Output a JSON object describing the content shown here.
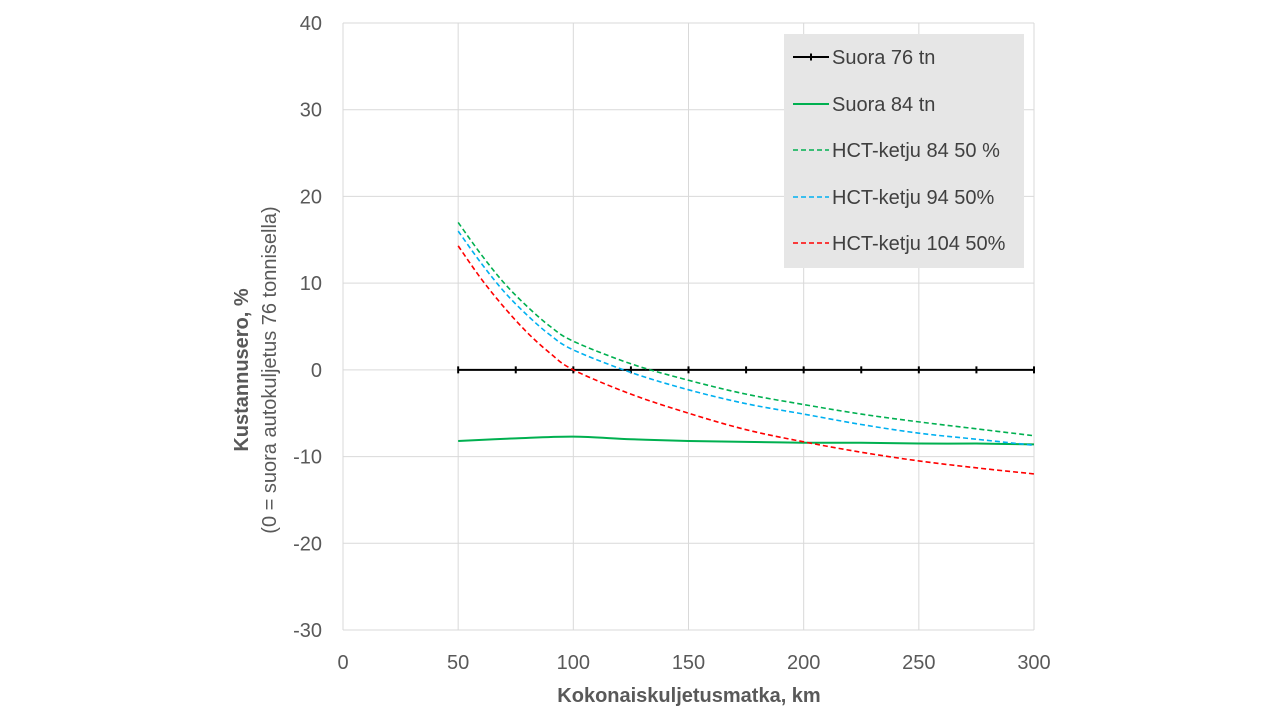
{
  "chart_data": {
    "type": "line",
    "xlabel": "Kokonaiskuljetusmatka, km",
    "ylabel": "Kustannusero, %",
    "ylabel_sub": "(0 = suora autokuljetus 76 tonnisella)",
    "xlim": [
      0,
      300
    ],
    "ylim": [
      -30,
      40
    ],
    "x_ticks": [
      0,
      50,
      100,
      150,
      200,
      250,
      300
    ],
    "y_ticks": [
      -30,
      -20,
      -10,
      0,
      10,
      20,
      30,
      40
    ],
    "grid": true,
    "legend_position": "top-right",
    "series": [
      {
        "name": "Suora 76 tn",
        "color": "#000000",
        "dash": "solid",
        "markers": true,
        "x": [
          50,
          75,
          100,
          125,
          150,
          175,
          200,
          225,
          250,
          275,
          300
        ],
        "y": [
          0,
          0,
          0,
          0,
          0,
          0,
          0,
          0,
          0,
          0,
          0
        ]
      },
      {
        "name": "Suora 84 tn",
        "color": "#00B050",
        "dash": "solid",
        "markers": false,
        "x": [
          50,
          75,
          100,
          125,
          150,
          175,
          200,
          225,
          250,
          275,
          300
        ],
        "y": [
          -8.2,
          -7.9,
          -7.7,
          -8.0,
          -8.2,
          -8.3,
          -8.4,
          -8.4,
          -8.5,
          -8.5,
          -8.6
        ]
      },
      {
        "name": "HCT-ketju 84 50 %",
        "color": "#00B050",
        "dash": "dashed",
        "markers": false,
        "x": [
          50,
          60,
          70,
          80,
          90,
          100,
          125,
          150,
          175,
          200,
          225,
          250,
          275,
          300
        ],
        "y": [
          17.0,
          13.3,
          10.0,
          7.3,
          5.0,
          3.3,
          0.7,
          -1.2,
          -2.8,
          -4.0,
          -5.1,
          -6.0,
          -6.8,
          -7.6
        ]
      },
      {
        "name": "HCT-ketju 94 50%",
        "color": "#00B0F0",
        "dash": "dashed",
        "markers": false,
        "x": [
          50,
          60,
          70,
          80,
          90,
          100,
          125,
          150,
          175,
          200,
          225,
          250,
          275,
          300
        ],
        "y": [
          16.0,
          12.3,
          9.0,
          6.3,
          4.0,
          2.3,
          -0.3,
          -2.3,
          -3.9,
          -5.1,
          -6.3,
          -7.3,
          -8.0,
          -8.7
        ]
      },
      {
        "name": "HCT-ketju 104 50%",
        "color": "#FF0000",
        "dash": "dashed",
        "markers": false,
        "x": [
          50,
          60,
          70,
          80,
          90,
          100,
          125,
          150,
          175,
          200,
          225,
          250,
          275,
          300
        ],
        "y": [
          14.3,
          10.5,
          7.2,
          4.3,
          1.9,
          0.0,
          -2.8,
          -5.0,
          -6.9,
          -8.3,
          -9.5,
          -10.5,
          -11.3,
          -12.0
        ]
      }
    ]
  }
}
